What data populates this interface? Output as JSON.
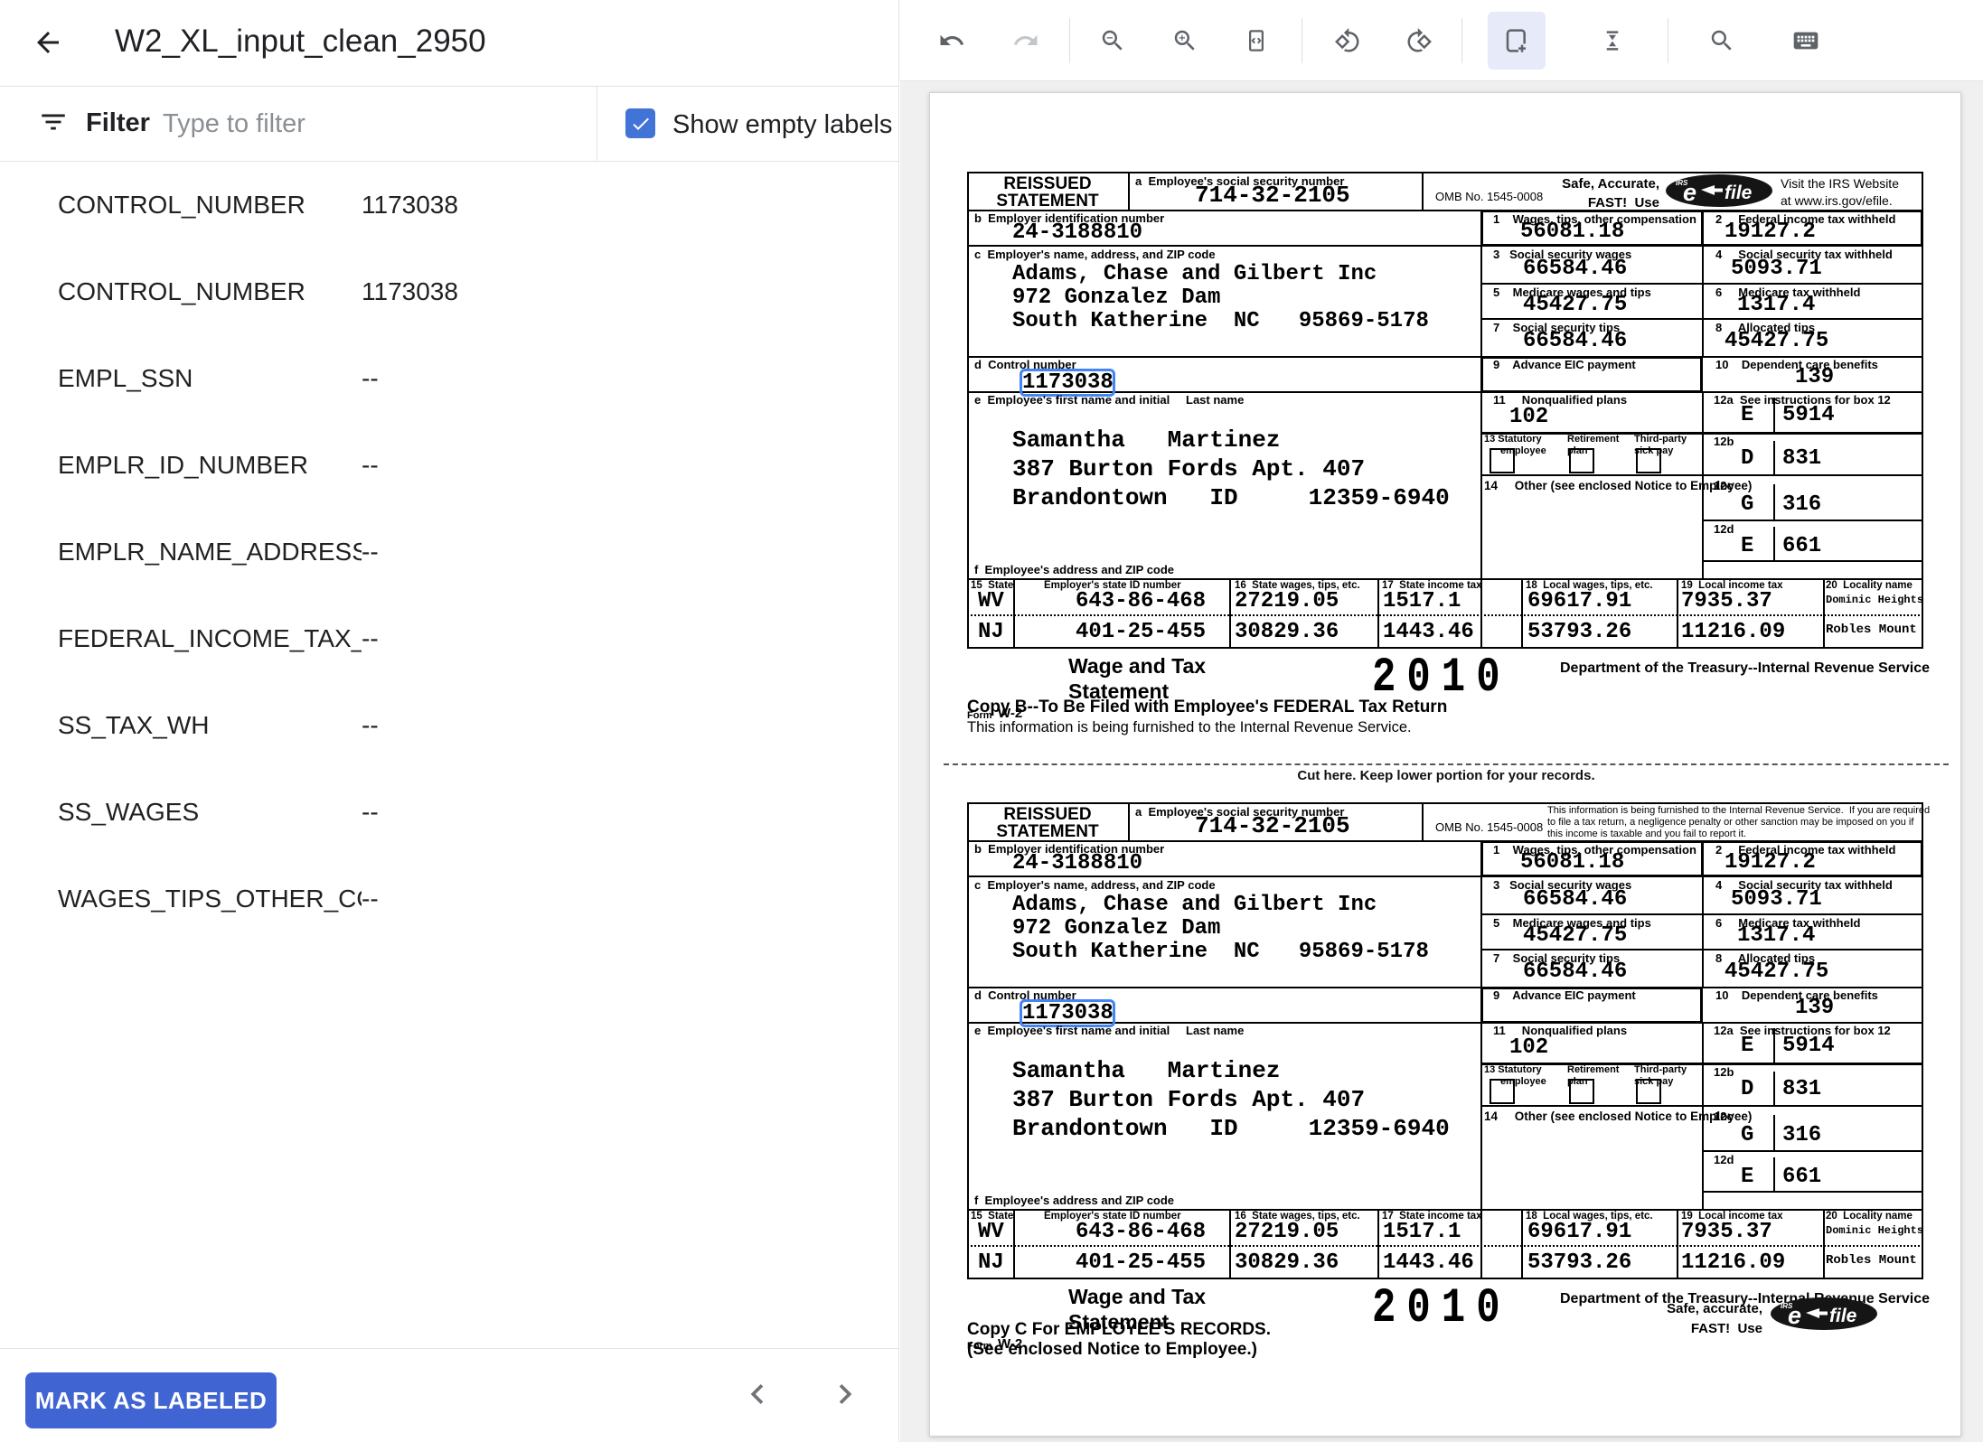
{
  "app": {
    "title": "W2_XL_input_clean_2950"
  },
  "filter": {
    "label": "Filter",
    "placeholder": "Type to filter",
    "show_empty_label": "Show empty labels",
    "checked": true
  },
  "labels": [
    {
      "name": "CONTROL_NUMBER",
      "value": "1173038"
    },
    {
      "name": "CONTROL_NUMBER",
      "value": "1173038"
    },
    {
      "name": "EMPL_SSN",
      "value": "--"
    },
    {
      "name": "EMPLR_ID_NUMBER",
      "value": "--"
    },
    {
      "name": "EMPLR_NAME_ADDRESS",
      "value": "--"
    },
    {
      "name": "FEDERAL_INCOME_TAX_…",
      "value": "--"
    },
    {
      "name": "SS_TAX_WH",
      "value": "--"
    },
    {
      "name": "SS_WAGES",
      "value": "--"
    },
    {
      "name": "WAGES_TIPS_OTHER_CO…",
      "value": "--"
    }
  ],
  "panel_footer": {
    "mark_button": "MARK AS LABELED"
  },
  "toolbar": {
    "icons": [
      "undo",
      "redo",
      "zoom-out",
      "zoom-in",
      "fit-to-width",
      "rotate-left",
      "rotate-right",
      "add-annotation-box",
      "vertical-align",
      "search",
      "keyboard"
    ],
    "selected": "add-annotation-box",
    "disabled": [
      "redo"
    ]
  },
  "colors": {
    "accent_blue": "#4065d3",
    "checkbox_blue": "#4274d8",
    "annotation_blue": "#4285f4",
    "selected_tool_bg": "#e7eaf8"
  },
  "cut_text": "Cut here.  Keep lower portion for your records.",
  "efile": {
    "irs": "IRS",
    "e": "e",
    "file": "file"
  },
  "w2": {
    "reissued_line1": "REISSUED",
    "reissued_line2": "STATEMENT",
    "box_a_label": "a  Employee's social security number",
    "ssn": "714-32-2105",
    "omb": "OMB No. 1545-0008",
    "box_b_label": "b  Employer identification number",
    "ein": "24-3188810",
    "box1_label": "1    Wages, tips, other compensation",
    "box1": "56081.18",
    "box2_label": "2     Federal income tax withheld",
    "box2": "19127.2",
    "box_c_label": "c  Employer's name, address, and ZIP code",
    "employer_line1": "Adams, Chase and Gilbert Inc",
    "employer_line2": "972 Gonzalez Dam",
    "employer_line3": "South Katherine  NC   95869-5178",
    "box3_label": "3   Social security wages",
    "box3": "66584.46",
    "box4_label": "4     Social security tax withheld",
    "box4": "5093.71",
    "box5_label": "5    Medicare wages and tips",
    "box5": "45427.75",
    "box6_label": "6     Medicare tax withheld",
    "box6": "1317.4",
    "box7_label": "7    Social security tips",
    "box7": "66584.46",
    "box8_label": "8     Allocated tips",
    "box8": "45427.75",
    "box_d_label": "d  Control number",
    "control_number": "1173038",
    "box9_label": "9    Advance EIC payment",
    "box9": "",
    "box10_label": "10    Dependent care benefits",
    "box10": "139",
    "box_e_label": "e  Employee's first name and initial",
    "last_name_label": "Last name",
    "employee_line1": "Samantha   Martinez",
    "employee_line2": "387 Burton Fords Apt. 407",
    "employee_line3": "Brandontown   ID     12359-6940",
    "box11_label": "11     Nonqualified plans",
    "box11": "102",
    "box12a_label": "12a  See instructions for box 12",
    "box12a_code": "E",
    "box12a_amount": "5914",
    "box13_l1a": "13 Statutory",
    "box13_l1b": "employee",
    "box13_l2a": "Retirement",
    "box13_l2b": "plan",
    "box13_l3a": "Third-party",
    "box13_l3b": "sick pay",
    "box14_label": "14     Other (see enclosed Notice to Employee)",
    "box12b_label": "12b",
    "box12b_code": "D",
    "box12b_amount": "831",
    "box12c_label": "12c",
    "box12c_code": "G",
    "box12c_amount": "316",
    "box12d_label": "12d",
    "box12d_code": "E",
    "box12d_amount": "661",
    "box_f_label": "f  Employee's address and ZIP code",
    "st15_label": "15  State",
    "st_id_label": "Employer's state ID number",
    "st16_label": "16  State wages, tips, etc.",
    "st17_label": "17  State income tax",
    "st18_label": "18  Local wages, tips, etc.",
    "st19_label": "19  Local income tax",
    "st20_label": "20  Locality name",
    "states": [
      {
        "st": "WV",
        "id": "643-86-468",
        "wages": "27219.05",
        "tax": "1517.1",
        "lwages": "69617.91",
        "ltax": "7935.37",
        "loc": "Dominic Heights"
      },
      {
        "st": "NJ",
        "id": "401-25-455",
        "wages": "30829.36",
        "tax": "1443.46",
        "lwages": "53793.26",
        "ltax": "11216.09",
        "loc": "Robles Mount"
      }
    ],
    "form_word": "Form",
    "form_number": "W-2",
    "title_line1": "Wage and Tax",
    "title_line2": "Statement",
    "year": "2010",
    "dept": "Department of the Treasury--Internal Revenue Service"
  },
  "forms": [
    {
      "copy": "B",
      "safe_line1": "Safe, Accurate,",
      "safe_line2": "FAST!  Use",
      "visit_line1": "Visit the IRS Website",
      "visit_line2": "at www.irs.gov/efile.",
      "copy_line1": "Copy B--To Be Filed with Employee's FEDERAL Tax Return",
      "copy_line2": "This information is being furnished to the Internal Revenue Service."
    },
    {
      "copy": "C",
      "notice_line1": "This information is being furnished to the Internal Revenue Service.  If you are required",
      "notice_line2": "to file a tax return, a negligence penalty or other sanction may be imposed on you if",
      "notice_line3": "this income is taxable and you fail to report it.",
      "copy_line1": "Copy C For EMPLOYEE'S RECORDS.",
      "copy_line2": "(See enclosed Notice to Employee.)",
      "safe_line1": "Safe, accurate,",
      "safe_line2": "FAST!  Use"
    }
  ]
}
